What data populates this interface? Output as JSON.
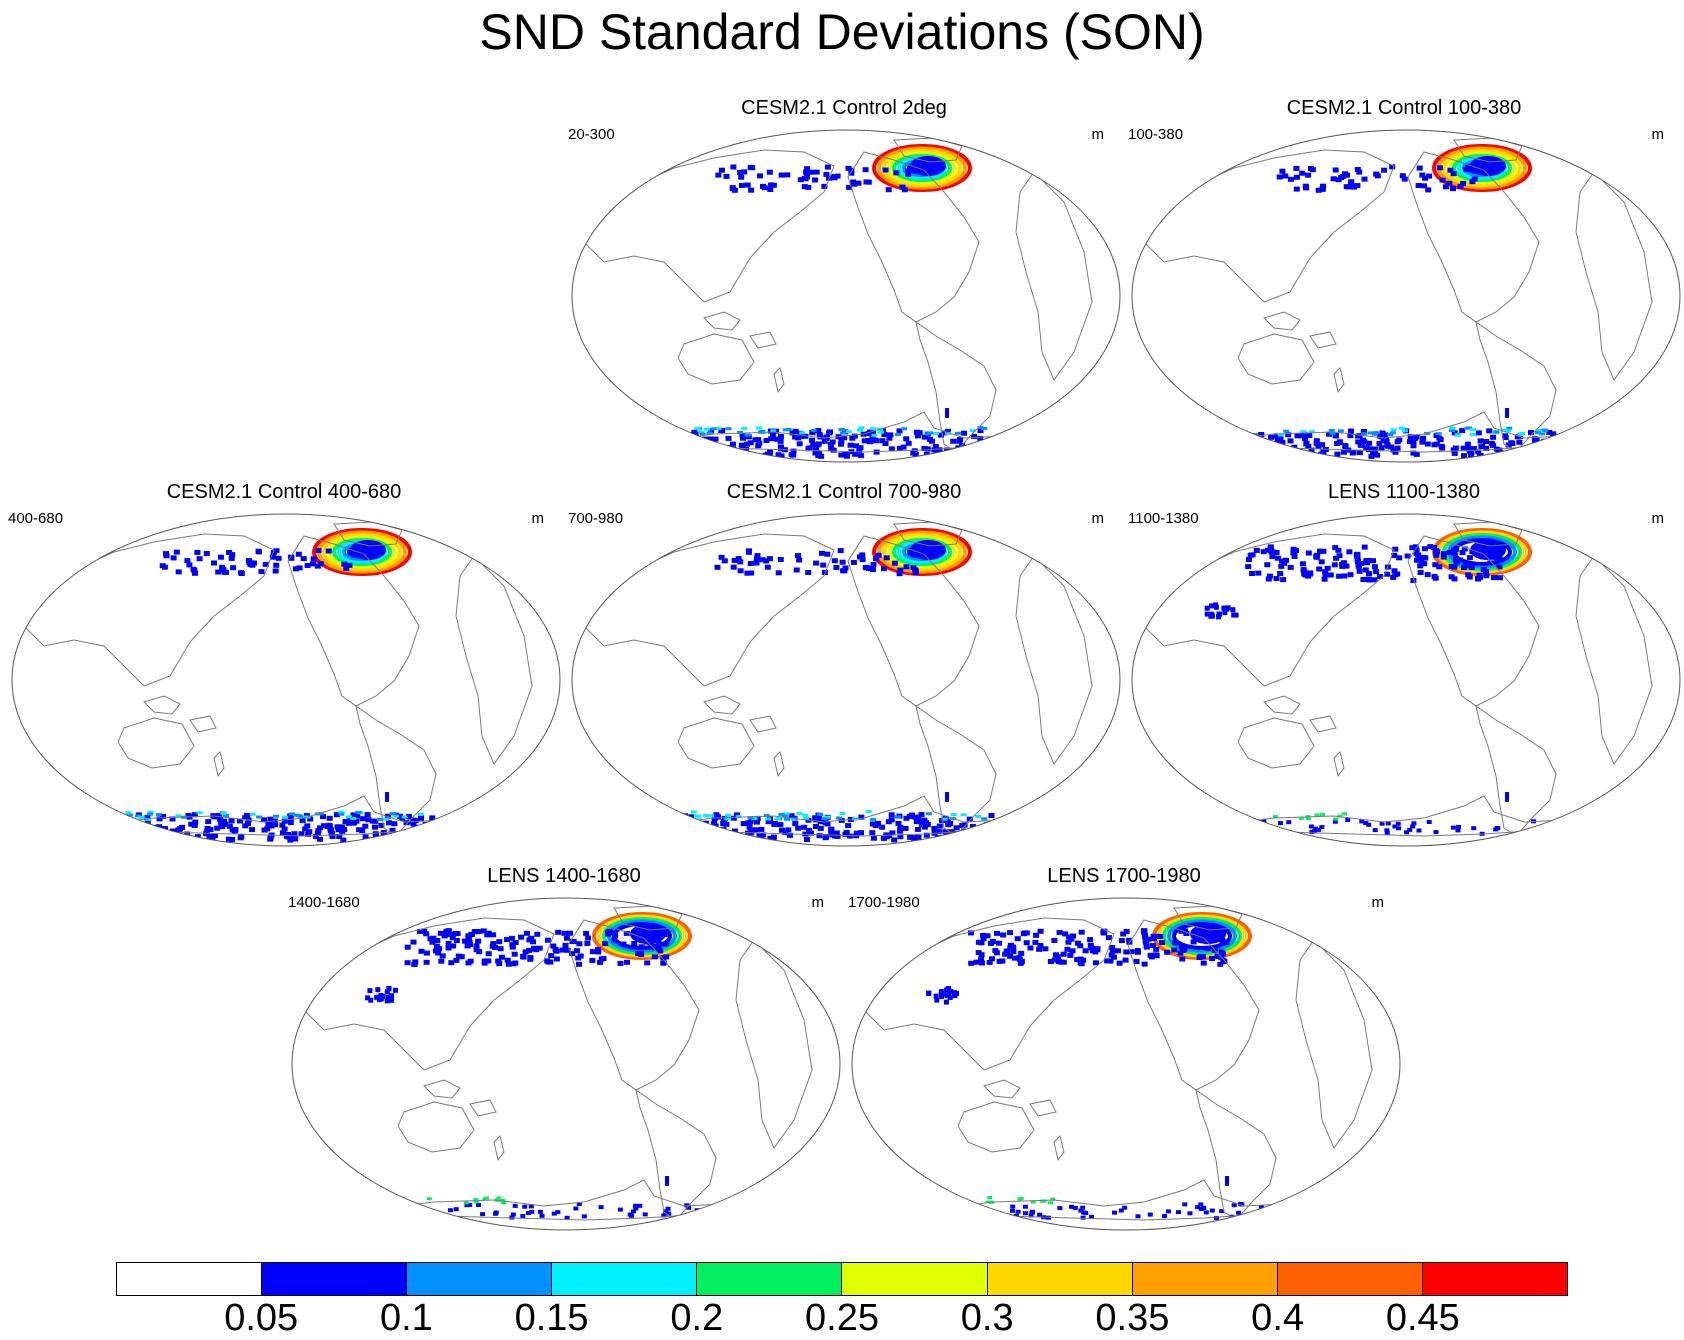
{
  "title": "SND Standard Deviations (SON)",
  "panels": [
    {
      "title": "CESM2.1 Control 2deg",
      "left_string": "20-300",
      "right_string": "m",
      "snow": "heavy",
      "southern": "full"
    },
    {
      "title": "CESM2.1 Control 100-380",
      "left_string": "100-380",
      "right_string": "m",
      "snow": "heavy",
      "southern": "full"
    },
    {
      "title": "CESM2.1 Control 400-680",
      "left_string": "400-680",
      "right_string": "m",
      "snow": "heavy",
      "southern": "full"
    },
    {
      "title": "CESM2.1 Control 700-980",
      "left_string": "700-980",
      "right_string": "m",
      "snow": "heavy",
      "southern": "full"
    },
    {
      "title": "LENS 1100-1380",
      "left_string": "1100-1380",
      "right_string": "m",
      "snow": "wide",
      "southern": "sparse"
    },
    {
      "title": "LENS 1400-1680",
      "left_string": "1400-1680",
      "right_string": "m",
      "snow": "wide",
      "southern": "sparse"
    },
    {
      "title": "LENS 1700-1980",
      "left_string": "1700-1980",
      "right_string": "m",
      "snow": "wide",
      "southern": "sparse"
    }
  ],
  "colorbar": {
    "colors": [
      "#ffffff",
      "#0000ff",
      "#0090ff",
      "#00f0ff",
      "#00f060",
      "#e0ff00",
      "#ffd800",
      "#ffa000",
      "#ff6000",
      "#ff0000"
    ],
    "labels": [
      "0.05",
      "0.1",
      "0.15",
      "0.2",
      "0.25",
      "0.3",
      "0.35",
      "0.4",
      "0.45"
    ]
  }
}
